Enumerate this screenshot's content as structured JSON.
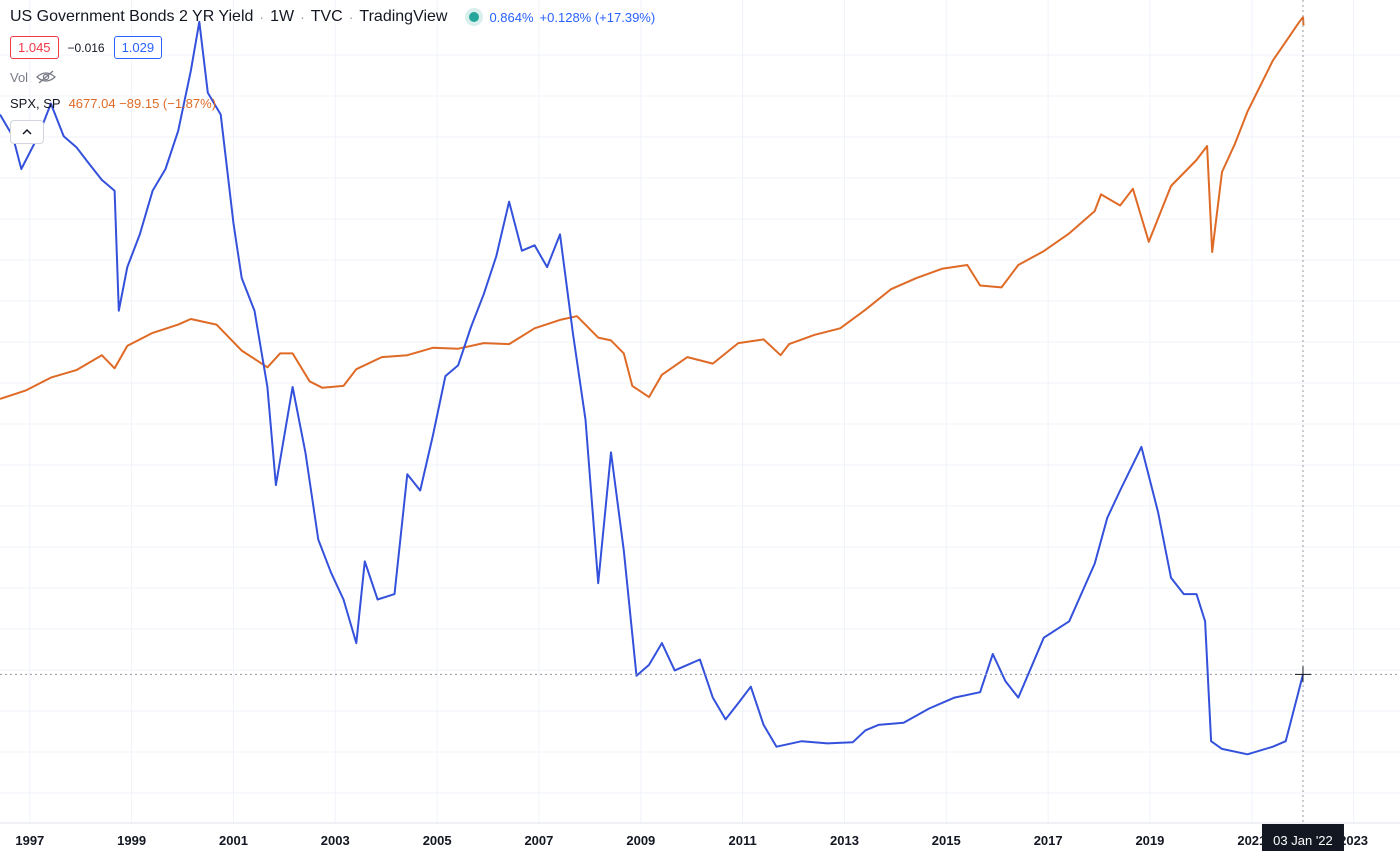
{
  "legend": {
    "title": "US Government Bonds 2 YR Yield",
    "interval": "1W",
    "exchange": "TVC",
    "source": "TradingView",
    "last_value": "0.864%",
    "change": "+0.128% (+17.39%)",
    "bid": "1.045",
    "spread": "−0.016",
    "ask": "1.029",
    "vol_label": "Vol",
    "compare_symbol": "SPX, SP",
    "compare_values": "4677.04 −89.15 (−1.87%)"
  },
  "crosshair_label": "03 Jan '22",
  "colors": {
    "yield_line": "#3451dc",
    "spx_line": "#df6a26",
    "grid": "#f0f3fa",
    "up": "#26a69a",
    "bid": "#f23645",
    "ask": "#2962ff"
  },
  "chart_data": {
    "type": "line",
    "x_axis": {
      "type": "date",
      "range": [
        "1996-06-01",
        "2023-11-30"
      ],
      "ticks": [
        "1997",
        "1999",
        "2001",
        "2003",
        "2005",
        "2007",
        "2009",
        "2011",
        "2013",
        "2015",
        "2017",
        "2019",
        "2021",
        "2023"
      ]
    },
    "y_axis_yield": {
      "unit": "%",
      "range": [
        -0.5,
        7.05
      ]
    },
    "y_axis_spx": {
      "range": [
        -3900,
        4950
      ],
      "scale": "linear"
    },
    "grid": true,
    "series": [
      {
        "name": "US Government Bonds 2 YR Yield",
        "axis": "yield",
        "points": [
          [
            "1996-06-01",
            6.0
          ],
          [
            "1996-09-01",
            5.8
          ],
          [
            "1996-11-01",
            5.5
          ],
          [
            "1997-03-01",
            5.8
          ],
          [
            "1997-06-01",
            6.1
          ],
          [
            "1997-09-01",
            5.8
          ],
          [
            "1997-12-01",
            5.7
          ],
          [
            "1998-03-01",
            5.55
          ],
          [
            "1998-06-01",
            5.4
          ],
          [
            "1998-09-01",
            5.3
          ],
          [
            "1998-10-01",
            4.2
          ],
          [
            "1998-12-01",
            4.6
          ],
          [
            "1999-03-01",
            4.9
          ],
          [
            "1999-06-01",
            5.3
          ],
          [
            "1999-09-01",
            5.5
          ],
          [
            "1999-12-01",
            5.85
          ],
          [
            "2000-03-01",
            6.4
          ],
          [
            "2000-05-01",
            6.85
          ],
          [
            "2000-07-01",
            6.2
          ],
          [
            "2000-10-01",
            6.0
          ],
          [
            "2001-01-01",
            5.0
          ],
          [
            "2001-03-01",
            4.5
          ],
          [
            "2001-06-01",
            4.2
          ],
          [
            "2001-09-01",
            3.5
          ],
          [
            "2001-11-01",
            2.6
          ],
          [
            "2002-03-01",
            3.5
          ],
          [
            "2002-06-01",
            2.9
          ],
          [
            "2002-09-01",
            2.1
          ],
          [
            "2002-12-01",
            1.8
          ],
          [
            "2003-03-01",
            1.55
          ],
          [
            "2003-06-01",
            1.15
          ],
          [
            "2003-08-01",
            1.9
          ],
          [
            "2003-11-01",
            1.55
          ],
          [
            "2004-03-01",
            1.6
          ],
          [
            "2004-06-01",
            2.7
          ],
          [
            "2004-09-01",
            2.55
          ],
          [
            "2004-12-01",
            3.05
          ],
          [
            "2005-03-01",
            3.6
          ],
          [
            "2005-06-01",
            3.7
          ],
          [
            "2005-09-01",
            4.05
          ],
          [
            "2005-12-01",
            4.35
          ],
          [
            "2006-03-01",
            4.7
          ],
          [
            "2006-06-01",
            5.2
          ],
          [
            "2006-09-01",
            4.75
          ],
          [
            "2006-12-01",
            4.8
          ],
          [
            "2007-03-01",
            4.6
          ],
          [
            "2007-06-01",
            4.9
          ],
          [
            "2007-09-01",
            4.0
          ],
          [
            "2007-12-01",
            3.2
          ],
          [
            "2008-03-01",
            1.7
          ],
          [
            "2008-06-01",
            2.9
          ],
          [
            "2008-09-01",
            2.0
          ],
          [
            "2008-12-01",
            0.85
          ],
          [
            "2009-03-01",
            0.95
          ],
          [
            "2009-06-01",
            1.15
          ],
          [
            "2009-09-01",
            0.9
          ],
          [
            "2009-12-01",
            0.95
          ],
          [
            "2010-03-01",
            1.0
          ],
          [
            "2010-06-01",
            0.65
          ],
          [
            "2010-09-01",
            0.45
          ],
          [
            "2010-12-01",
            0.6
          ],
          [
            "2011-03-01",
            0.75
          ],
          [
            "2011-06-01",
            0.4
          ],
          [
            "2011-09-01",
            0.2
          ],
          [
            "2012-03-01",
            0.25
          ],
          [
            "2012-09-01",
            0.23
          ],
          [
            "2013-03-01",
            0.24
          ],
          [
            "2013-06-01",
            0.35
          ],
          [
            "2013-09-01",
            0.4
          ],
          [
            "2014-03-01",
            0.42
          ],
          [
            "2014-09-01",
            0.55
          ],
          [
            "2015-03-01",
            0.65
          ],
          [
            "2015-09-01",
            0.7
          ],
          [
            "2015-12-01",
            1.05
          ],
          [
            "2016-03-01",
            0.8
          ],
          [
            "2016-06-01",
            0.65
          ],
          [
            "2016-12-01",
            1.2
          ],
          [
            "2017-06-01",
            1.35
          ],
          [
            "2017-12-01",
            1.88
          ],
          [
            "2018-03-01",
            2.3
          ],
          [
            "2018-06-01",
            2.55
          ],
          [
            "2018-11-01",
            2.95
          ],
          [
            "2019-03-01",
            2.35
          ],
          [
            "2019-06-01",
            1.75
          ],
          [
            "2019-09-01",
            1.6
          ],
          [
            "2019-12-01",
            1.6
          ],
          [
            "2020-02-01",
            1.35
          ],
          [
            "2020-03-15",
            0.25
          ],
          [
            "2020-06-01",
            0.18
          ],
          [
            "2020-12-01",
            0.13
          ],
          [
            "2021-06-01",
            0.2
          ],
          [
            "2021-09-01",
            0.25
          ],
          [
            "2021-12-01",
            0.7
          ],
          [
            "2022-01-03",
            0.864
          ]
        ]
      },
      {
        "name": "SPX, SP",
        "axis": "spx",
        "points": [
          [
            "1996-06-01",
            660
          ],
          [
            "1996-12-01",
            750
          ],
          [
            "1997-06-01",
            890
          ],
          [
            "1997-12-01",
            970
          ],
          [
            "1998-06-01",
            1130
          ],
          [
            "1998-09-01",
            990
          ],
          [
            "1998-12-01",
            1230
          ],
          [
            "1999-06-01",
            1370
          ],
          [
            "1999-12-01",
            1460
          ],
          [
            "2000-03-01",
            1520
          ],
          [
            "2000-09-01",
            1460
          ],
          [
            "2001-03-01",
            1180
          ],
          [
            "2001-09-01",
            1000
          ],
          [
            "2001-12-01",
            1150
          ],
          [
            "2002-03-01",
            1150
          ],
          [
            "2002-07-01",
            850
          ],
          [
            "2002-10-01",
            780
          ],
          [
            "2003-03-01",
            800
          ],
          [
            "2003-06-01",
            980
          ],
          [
            "2003-12-01",
            1110
          ],
          [
            "2004-06-01",
            1130
          ],
          [
            "2004-12-01",
            1210
          ],
          [
            "2005-06-01",
            1200
          ],
          [
            "2005-12-01",
            1260
          ],
          [
            "2006-06-01",
            1250
          ],
          [
            "2006-12-01",
            1420
          ],
          [
            "2007-06-01",
            1510
          ],
          [
            "2007-10-01",
            1550
          ],
          [
            "2008-03-01",
            1320
          ],
          [
            "2008-06-01",
            1290
          ],
          [
            "2008-09-01",
            1150
          ],
          [
            "2008-11-01",
            800
          ],
          [
            "2009-03-01",
            680
          ],
          [
            "2009-06-01",
            920
          ],
          [
            "2009-12-01",
            1110
          ],
          [
            "2010-06-01",
            1040
          ],
          [
            "2010-12-01",
            1260
          ],
          [
            "2011-06-01",
            1300
          ],
          [
            "2011-10-01",
            1130
          ],
          [
            "2011-12-01",
            1250
          ],
          [
            "2012-06-01",
            1350
          ],
          [
            "2012-12-01",
            1420
          ],
          [
            "2013-06-01",
            1620
          ],
          [
            "2013-12-01",
            1840
          ],
          [
            "2014-06-01",
            1960
          ],
          [
            "2014-12-01",
            2060
          ],
          [
            "2015-06-01",
            2100
          ],
          [
            "2015-09-01",
            1880
          ],
          [
            "2016-02-01",
            1860
          ],
          [
            "2016-06-01",
            2100
          ],
          [
            "2016-12-01",
            2250
          ],
          [
            "2017-06-01",
            2440
          ],
          [
            "2017-12-01",
            2680
          ],
          [
            "2018-01-15",
            2860
          ],
          [
            "2018-06-01",
            2740
          ],
          [
            "2018-09-01",
            2920
          ],
          [
            "2018-12-24",
            2350
          ],
          [
            "2019-06-01",
            2950
          ],
          [
            "2019-12-01",
            3230
          ],
          [
            "2020-02-15",
            3380
          ],
          [
            "2020-03-23",
            2240
          ],
          [
            "2020-06-01",
            3100
          ],
          [
            "2020-09-01",
            3400
          ],
          [
            "2020-12-01",
            3750
          ],
          [
            "2021-06-01",
            4300
          ],
          [
            "2021-09-01",
            4500
          ],
          [
            "2021-12-01",
            4700
          ],
          [
            "2022-01-03",
            4766
          ],
          [
            "2022-01-07",
            4677
          ]
        ]
      }
    ]
  }
}
